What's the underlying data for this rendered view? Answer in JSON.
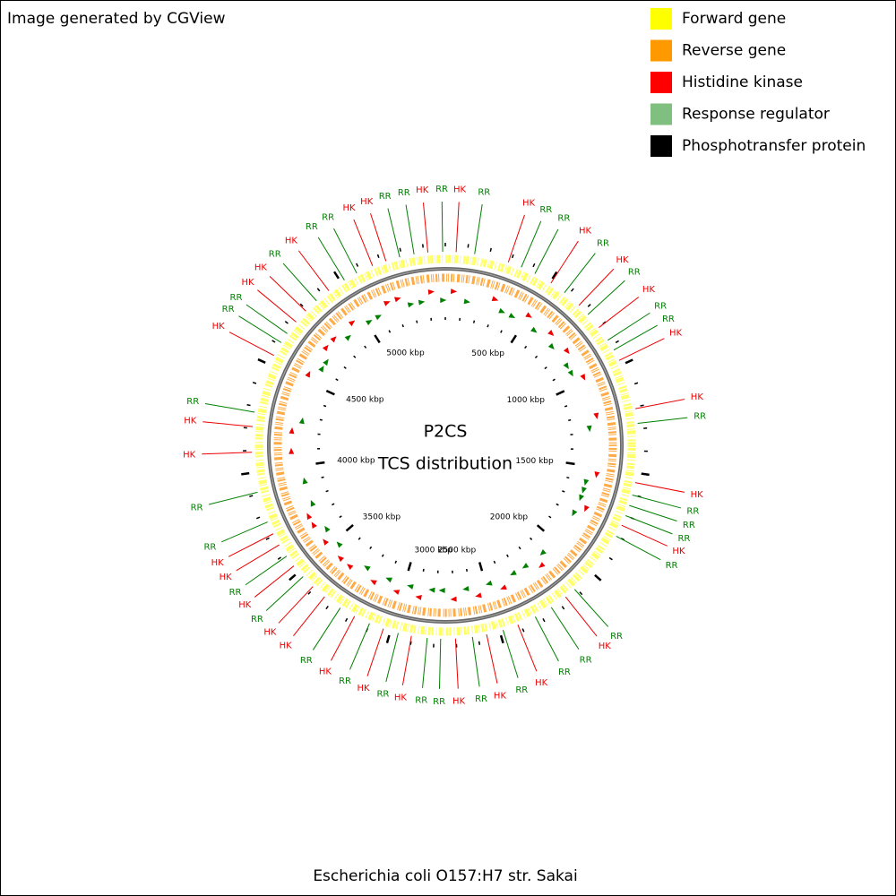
{
  "header": "Image generated by CGView",
  "legend": [
    {
      "label": "Forward gene",
      "color": "#ffff00"
    },
    {
      "label": "Reverse gene",
      "color": "#ff9900"
    },
    {
      "label": "Histidine kinase",
      "color": "#ff0000"
    },
    {
      "label": "Response regulator",
      "color": "#7fbf7f"
    },
    {
      "label": "Phosphotransfer protein",
      "color": "#000000"
    }
  ],
  "center": [
    "P2CS",
    "TCS distribution"
  ],
  "footer": "Escherichia coli O157:H7 str. Sakai",
  "map": {
    "xlim": [
      0,
      5498
    ],
    "ticks": [
      {
        "value": 500,
        "label": "500 kbp"
      },
      {
        "value": 1000,
        "label": "1000 kbp"
      },
      {
        "value": 1500,
        "label": "1500 kbp"
      },
      {
        "value": 2000,
        "label": "2000 kbp"
      },
      {
        "value": 2500,
        "label": "2500 kbp"
      },
      {
        "value": 3000,
        "label": "3000 kbp"
      },
      {
        "value": 3500,
        "label": "3500 kbp"
      },
      {
        "value": 4000,
        "label": "4000 kbp"
      },
      {
        "value": 4500,
        "label": "4500 kbp"
      },
      {
        "value": 5000,
        "label": "5000 kbp"
      }
    ],
    "features": [
      {
        "label": "RR",
        "position": 5486,
        "color": "#008000"
      },
      {
        "label": "HK",
        "position": 49,
        "color": "#ee0000"
      },
      {
        "label": "RR",
        "position": 133,
        "color": "#008000"
      },
      {
        "label": "HK",
        "position": 290,
        "color": "#ee0000"
      },
      {
        "label": "RR",
        "position": 353,
        "color": "#008000"
      },
      {
        "label": "RR",
        "position": 421,
        "color": "#008000"
      },
      {
        "label": "HK",
        "position": 505,
        "color": "#ee0000"
      },
      {
        "label": "RR",
        "position": 580,
        "color": "#008000"
      },
      {
        "label": "HK",
        "position": 667,
        "color": "#ee0000"
      },
      {
        "label": "RR",
        "position": 725,
        "color": "#008000"
      },
      {
        "label": "HK",
        "position": 802,
        "color": "#ee0000"
      },
      {
        "label": "RR",
        "position": 872,
        "color": "#008000"
      },
      {
        "label": "RR",
        "position": 924,
        "color": "#008000"
      },
      {
        "label": "HK",
        "position": 977,
        "color": "#ee0000"
      },
      {
        "label": "HK",
        "position": 1208,
        "color": "#ee0000"
      },
      {
        "label": "RR",
        "position": 1275,
        "color": "#008000"
      },
      {
        "label": "HK",
        "position": 1544,
        "color": "#ee0000"
      },
      {
        "label": "RR",
        "position": 1602,
        "color": "#008000"
      },
      {
        "label": "RR",
        "position": 1651,
        "color": "#008000"
      },
      {
        "label": "RR",
        "position": 1700,
        "color": "#008000"
      },
      {
        "label": "HK",
        "position": 1747,
        "color": "#ee0000"
      },
      {
        "label": "RR",
        "position": 1802,
        "color": "#008000"
      },
      {
        "label": "RR",
        "position": 2109,
        "color": "#008000"
      },
      {
        "label": "HK",
        "position": 2162,
        "color": "#ee0000"
      },
      {
        "label": "RR",
        "position": 2242,
        "color": "#008000"
      },
      {
        "label": "RR",
        "position": 2326,
        "color": "#008000"
      },
      {
        "label": "HK",
        "position": 2413,
        "color": "#ee0000"
      },
      {
        "label": "RR",
        "position": 2484,
        "color": "#008000"
      },
      {
        "label": "HK",
        "position": 2561,
        "color": "#ee0000"
      },
      {
        "label": "RR",
        "position": 2626,
        "color": "#008000"
      },
      {
        "label": "HK",
        "position": 2703,
        "color": "#ee0000"
      },
      {
        "label": "RR",
        "position": 2770,
        "color": "#008000"
      },
      {
        "label": "RR",
        "position": 2831,
        "color": "#008000"
      },
      {
        "label": "HK",
        "position": 2903,
        "color": "#ee0000"
      },
      {
        "label": "RR",
        "position": 2964,
        "color": "#008000"
      },
      {
        "label": "HK",
        "position": 3034,
        "color": "#ee0000"
      },
      {
        "label": "RR",
        "position": 3101,
        "color": "#008000"
      },
      {
        "label": "HK",
        "position": 3176,
        "color": "#ee0000"
      },
      {
        "label": "RR",
        "position": 3251,
        "color": "#008000"
      },
      {
        "label": "HK",
        "position": 3338,
        "color": "#ee0000"
      },
      {
        "label": "HK",
        "position": 3408,
        "color": "#ee0000"
      },
      {
        "label": "RR",
        "position": 3471,
        "color": "#008000"
      },
      {
        "label": "HK",
        "position": 3535,
        "color": "#ee0000"
      },
      {
        "label": "RR",
        "position": 3590,
        "color": "#008000"
      },
      {
        "label": "HK",
        "position": 3651,
        "color": "#ee0000"
      },
      {
        "label": "HK",
        "position": 3708,
        "color": "#ee0000"
      },
      {
        "label": "RR",
        "position": 3767,
        "color": "#008000"
      },
      {
        "label": "RR",
        "position": 3909,
        "color": "#008000"
      },
      {
        "label": "HK",
        "position": 4092,
        "color": "#ee0000"
      },
      {
        "label": "HK",
        "position": 4208,
        "color": "#ee0000"
      },
      {
        "label": "RR",
        "position": 4274,
        "color": "#008000"
      },
      {
        "label": "HK",
        "position": 4546,
        "color": "#ee0000"
      },
      {
        "label": "RR",
        "position": 4613,
        "color": "#008000"
      },
      {
        "label": "RR",
        "position": 4662,
        "color": "#008000"
      },
      {
        "label": "HK",
        "position": 4728,
        "color": "#ee0000"
      },
      {
        "label": "HK",
        "position": 4794,
        "color": "#ee0000"
      },
      {
        "label": "RR",
        "position": 4861,
        "color": "#008000"
      },
      {
        "label": "HK",
        "position": 4933,
        "color": "#ee0000"
      },
      {
        "label": "RR",
        "position": 5018,
        "color": "#008000"
      },
      {
        "label": "RR",
        "position": 5082,
        "color": "#008000"
      },
      {
        "label": "HK",
        "position": 5161,
        "color": "#ee0000"
      },
      {
        "label": "HK",
        "position": 5225,
        "color": "#ee0000"
      },
      {
        "label": "RR",
        "position": 5290,
        "color": "#008000"
      },
      {
        "label": "RR",
        "position": 5356,
        "color": "#008000"
      },
      {
        "label": "HK",
        "position": 5419,
        "color": "#ee0000"
      }
    ]
  }
}
